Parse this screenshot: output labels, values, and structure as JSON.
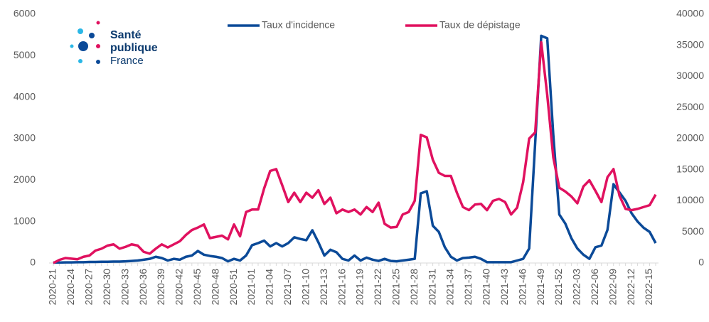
{
  "chart_data": {
    "type": "line",
    "categories": [
      "2020-21",
      null,
      null,
      "2020-24",
      null,
      null,
      "2020-27",
      null,
      null,
      "2020-30",
      null,
      null,
      "2020-33",
      null,
      null,
      "2020-36",
      null,
      null,
      "2020-39",
      null,
      null,
      "2020-42",
      null,
      null,
      "2020-45",
      null,
      null,
      "2020-48",
      null,
      null,
      "2020-51",
      null,
      null,
      "2021-01",
      null,
      null,
      "2021-04",
      null,
      null,
      "2021-07",
      null,
      null,
      "2021-10",
      null,
      null,
      "2021-13",
      null,
      null,
      "2021-16",
      null,
      null,
      "2021-19",
      null,
      null,
      "2021-22",
      null,
      null,
      "2021-25",
      null,
      null,
      "2021-28",
      null,
      null,
      "2021-31",
      null,
      null,
      "2021-34",
      null,
      null,
      "2021-37",
      null,
      null,
      "2021-40",
      null,
      null,
      "2021-43",
      null,
      null,
      "2021-46",
      null,
      null,
      "2021-49",
      null,
      null,
      "2021-52",
      null,
      null,
      "2022-03",
      null,
      null,
      "2022-06",
      null,
      null,
      "2022-09",
      null,
      null,
      "2022-12",
      null,
      null,
      "2022-15",
      null
    ],
    "series": [
      {
        "name": "Taux d'incidence",
        "color": "#0b4a98",
        "values": [
          10,
          10,
          15,
          15,
          20,
          20,
          25,
          25,
          30,
          30,
          35,
          35,
          40,
          50,
          60,
          80,
          100,
          150,
          120,
          60,
          100,
          80,
          150,
          180,
          290,
          200,
          170,
          150,
          120,
          40,
          100,
          60,
          180,
          430,
          480,
          540,
          400,
          480,
          400,
          480,
          620,
          580,
          550,
          790,
          500,
          180,
          320,
          260,
          100,
          60,
          180,
          60,
          130,
          80,
          50,
          100,
          50,
          40,
          60,
          80,
          100,
          1680,
          1730,
          900,
          750,
          380,
          150,
          60,
          120,
          130,
          150,
          100,
          20,
          20,
          20,
          20,
          20,
          60,
          100,
          350,
          2900,
          5480,
          5420,
          3100,
          1170,
          950,
          600,
          350,
          200,
          100,
          380,
          420,
          800,
          1900,
          1700,
          1500,
          1200,
          1000,
          850,
          750,
          480
        ]
      },
      {
        "name": "Taux de dépistage",
        "color": "#e0115f",
        "axis": "y2",
        "values": [
          0,
          500,
          800,
          700,
          600,
          1000,
          1200,
          2000,
          2300,
          2800,
          3000,
          2300,
          2600,
          3000,
          2800,
          1800,
          1500,
          2300,
          3000,
          2500,
          3000,
          3500,
          4500,
          5300,
          5700,
          6200,
          4000,
          4200,
          4400,
          3800,
          6200,
          4300,
          8200,
          8600,
          8600,
          12000,
          14800,
          15100,
          12500,
          9800,
          11300,
          9800,
          11300,
          10500,
          11700,
          9500,
          10500,
          8000,
          8600,
          8200,
          8600,
          7800,
          9000,
          8200,
          9700,
          6300,
          5700,
          5800,
          7800,
          8200,
          10000,
          20600,
          20200,
          16600,
          14500,
          14000,
          14000,
          11300,
          9000,
          8500,
          9400,
          9500,
          8500,
          10000,
          10300,
          9800,
          7800,
          8900,
          13000,
          20000,
          21000,
          35500,
          27000,
          17000,
          12100,
          11500,
          10700,
          9600,
          12300,
          13300,
          11600,
          9800,
          13800,
          15100,
          10800,
          8700,
          8500,
          8700,
          9000,
          9300,
          11000
        ]
      }
    ],
    "ylim": [
      0,
      6000
    ],
    "yticks": [
      0,
      1000,
      2000,
      3000,
      4000,
      5000,
      6000
    ],
    "y2lim": [
      0,
      40000
    ],
    "y2ticks": [
      0,
      5000,
      10000,
      15000,
      20000,
      25000,
      30000,
      35000,
      40000
    ],
    "legend": "top",
    "grid": false
  },
  "logo": {
    "line1": "Santé",
    "line2": "publique",
    "line3": "France"
  }
}
